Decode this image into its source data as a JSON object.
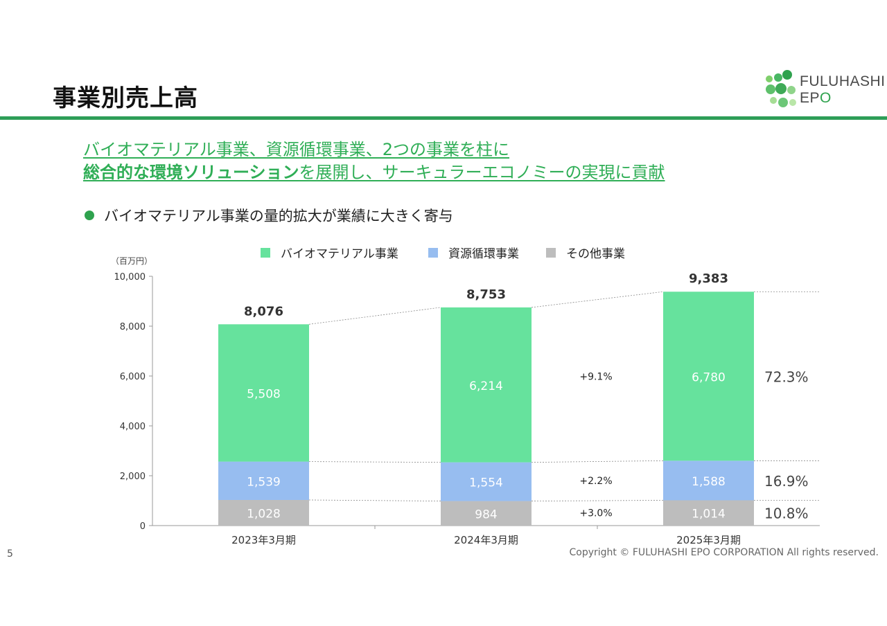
{
  "slide": {
    "title": "事業別売上高",
    "headline_line1": "バイオマテリアル事業、資源循環事業、2つの事業を柱に",
    "headline_line2_bold": "総合的な環境ソリューション",
    "headline_line2_rest": "を展開し、サーキュラーエコノミーの実現に貢献",
    "bullet": "バイオマテリアル事業の量的拡大が業績に大きく寄与",
    "page_number": "5",
    "copyright": "Copyright © FULUHASHI EPO CORPORATION All rights reserved.",
    "accent_color": "#2e9e58"
  },
  "logo": {
    "line1": "FULUHASHI",
    "line2_prefix": "EP",
    "line2_accent": "O"
  },
  "chart_data": {
    "type": "bar",
    "stacked": true,
    "unit_label": "（百万円）",
    "categories": [
      "2023年3月期",
      "2024年3月期",
      "2025年3月期"
    ],
    "ylim": [
      0,
      10000
    ],
    "yticks": [
      "0",
      "2,000",
      "4,000",
      "6,000",
      "8,000",
      "10,000"
    ],
    "ytick_values": [
      0,
      2000,
      4000,
      6000,
      8000,
      10000
    ],
    "legend_position": "top",
    "series": [
      {
        "name": "その他事業",
        "color": "#bdbdbd",
        "values": [
          1028,
          984,
          1014
        ],
        "labels": [
          "1,028",
          "984",
          "1,014"
        ]
      },
      {
        "name": "資源循環事業",
        "color": "#97bdf0",
        "values": [
          1539,
          1554,
          1588
        ],
        "labels": [
          "1,539",
          "1,554",
          "1,588"
        ]
      },
      {
        "name": "バイオマテリアル事業",
        "color": "#66e29d",
        "values": [
          5508,
          6214,
          6780
        ],
        "labels": [
          "5,508",
          "6,214",
          "6,780"
        ]
      }
    ],
    "legend_order": [
      "バイオマテリアル事業",
      "資源循環事業",
      "その他事業"
    ],
    "totals": [
      8076,
      8753,
      9383
    ],
    "total_labels": [
      "8,076",
      "8,753",
      "9,383"
    ],
    "growth_labels": {
      "バイオマテリアル事業": "+9.1%",
      "資源循環事業": "+2.2%",
      "その他事業": "+3.0%"
    },
    "share_labels": {
      "バイオマテリアル事業": "72.3%",
      "資源循環事業": "16.9%",
      "その他事業": "10.8%"
    }
  }
}
